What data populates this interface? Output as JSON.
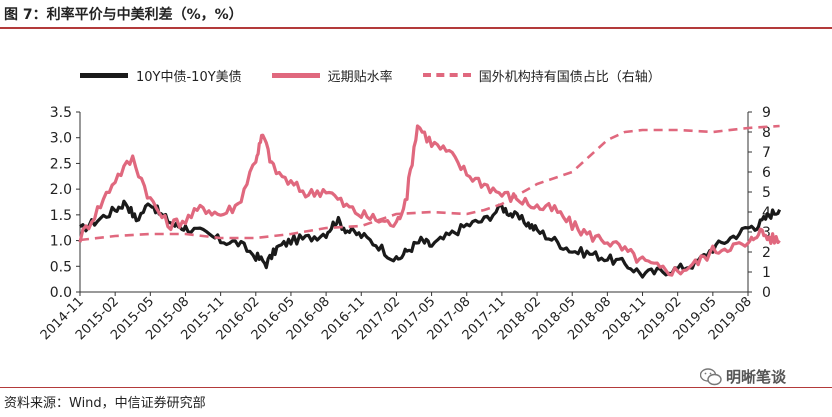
{
  "title": "图 7：利率平价与中美利差（%，%）",
  "source": "资料来源：Wind，中信证券研究部",
  "watermark": "明晰笔谈",
  "colors": {
    "accent": "#b33a3a",
    "spread": "#1a1a1a",
    "forward": "#e0687e",
    "holding": "#e0687e"
  },
  "chart_data": {
    "type": "line",
    "title": "图 7：利率平价与中美利差（%，%）",
    "x_categories": [
      "2014-11",
      "2015-02",
      "2015-05",
      "2015-08",
      "2015-11",
      "2016-02",
      "2016-05",
      "2016-08",
      "2016-11",
      "2017-02",
      "2017-05",
      "2017-08",
      "2017-11",
      "2018-02",
      "2018-05",
      "2018-08",
      "2018-11",
      "2019-02",
      "2019-05",
      "2019-08"
    ],
    "left_axis": {
      "ylim": [
        0,
        3.5
      ],
      "ticks": [
        "0.0",
        "0.5",
        "1.0",
        "1.5",
        "2.0",
        "2.5",
        "3.0",
        "3.5"
      ]
    },
    "right_axis": {
      "ylim": [
        0,
        9
      ],
      "ticks": [
        "0",
        "1",
        "2",
        "3",
        "4",
        "5",
        "6",
        "7",
        "8",
        "9"
      ]
    },
    "legend_position": "top",
    "grid": false,
    "series": [
      {
        "name": "10Y中债-10Y美债",
        "axis": "left",
        "style": "solid-black",
        "points": [
          [
            0,
            1.2
          ],
          [
            0.5,
            1.4
          ],
          [
            1,
            1.6
          ],
          [
            1.3,
            1.75
          ],
          [
            1.6,
            1.4
          ],
          [
            2,
            1.75
          ],
          [
            2.3,
            1.5
          ],
          [
            2.7,
            1.3
          ],
          [
            3,
            1.25
          ],
          [
            3.5,
            1.15
          ],
          [
            4,
            1.0
          ],
          [
            4.5,
            0.95
          ],
          [
            5,
            0.7
          ],
          [
            5.3,
            0.55
          ],
          [
            5.6,
            0.85
          ],
          [
            6,
            1.0
          ],
          [
            6.5,
            1.05
          ],
          [
            7,
            1.15
          ],
          [
            7.3,
            1.4
          ],
          [
            7.6,
            1.2
          ],
          [
            8,
            1.1
          ],
          [
            8.5,
            0.9
          ],
          [
            9,
            0.6
          ],
          [
            9.3,
            0.8
          ],
          [
            9.7,
            1.0
          ],
          [
            10,
            0.9
          ],
          [
            10.5,
            1.1
          ],
          [
            11,
            1.3
          ],
          [
            11.5,
            1.4
          ],
          [
            12,
            1.65
          ],
          [
            12.3,
            1.5
          ],
          [
            12.7,
            1.35
          ],
          [
            13,
            1.2
          ],
          [
            13.5,
            1.0
          ],
          [
            14,
            0.8
          ],
          [
            14.5,
            0.75
          ],
          [
            15,
            0.65
          ],
          [
            15.5,
            0.55
          ],
          [
            16,
            0.35
          ],
          [
            16.5,
            0.4
          ],
          [
            17,
            0.45
          ],
          [
            17.5,
            0.55
          ],
          [
            18,
            0.85
          ],
          [
            18.5,
            1.05
          ],
          [
            19,
            1.25
          ],
          [
            19.3,
            1.3
          ],
          [
            19.6,
            1.5
          ],
          [
            19.9,
            1.6
          ]
        ]
      },
      {
        "name": "远期贴水率",
        "axis": "left",
        "style": "solid-pink",
        "points": [
          [
            0,
            1.05
          ],
          [
            0.5,
            1.6
          ],
          [
            1,
            2.2
          ],
          [
            1.5,
            2.6
          ],
          [
            2,
            1.8
          ],
          [
            2.5,
            1.3
          ],
          [
            3,
            1.4
          ],
          [
            3.5,
            1.65
          ],
          [
            4,
            1.5
          ],
          [
            4.5,
            1.7
          ],
          [
            5,
            2.6
          ],
          [
            5.2,
            3.05
          ],
          [
            5.5,
            2.4
          ],
          [
            6,
            2.1
          ],
          [
            6.5,
            1.9
          ],
          [
            7,
            2.0
          ],
          [
            7.5,
            1.7
          ],
          [
            8,
            1.5
          ],
          [
            8.5,
            1.4
          ],
          [
            9,
            1.3
          ],
          [
            9.3,
            1.9
          ],
          [
            9.6,
            3.25
          ],
          [
            10,
            2.9
          ],
          [
            10.5,
            2.7
          ],
          [
            11,
            2.3
          ],
          [
            11.5,
            2.1
          ],
          [
            12,
            1.9
          ],
          [
            12.5,
            1.8
          ],
          [
            13,
            1.65
          ],
          [
            13.5,
            1.6
          ],
          [
            14,
            1.3
          ],
          [
            14.5,
            1.1
          ],
          [
            15,
            1.0
          ],
          [
            15.5,
            0.8
          ],
          [
            16,
            0.6
          ],
          [
            16.5,
            0.45
          ],
          [
            17,
            0.4
          ],
          [
            17.5,
            0.55
          ],
          [
            18,
            0.8
          ],
          [
            18.5,
            0.9
          ],
          [
            19,
            0.9
          ],
          [
            19.3,
            1.2
          ],
          [
            19.6,
            1.05
          ],
          [
            19.9,
            1.0
          ]
        ]
      },
      {
        "name": "国外机构持有国债占比（右轴）",
        "axis": "right",
        "style": "dashed-pink",
        "points": [
          [
            0,
            2.6
          ],
          [
            1,
            2.8
          ],
          [
            2,
            2.9
          ],
          [
            3,
            2.9
          ],
          [
            4,
            2.7
          ],
          [
            5,
            2.7
          ],
          [
            6,
            2.9
          ],
          [
            7,
            3.2
          ],
          [
            8,
            3.3
          ],
          [
            8.5,
            3.6
          ],
          [
            9,
            3.9
          ],
          [
            10,
            4.0
          ],
          [
            11,
            3.9
          ],
          [
            11.5,
            4.1
          ],
          [
            12,
            4.4
          ],
          [
            12.5,
            4.9
          ],
          [
            13,
            5.4
          ],
          [
            14,
            6.0
          ],
          [
            14.5,
            6.8
          ],
          [
            15,
            7.6
          ],
          [
            15.5,
            8.0
          ],
          [
            16,
            8.1
          ],
          [
            17,
            8.1
          ],
          [
            18,
            8.0
          ],
          [
            19,
            8.2
          ],
          [
            19.9,
            8.3
          ]
        ]
      }
    ]
  }
}
